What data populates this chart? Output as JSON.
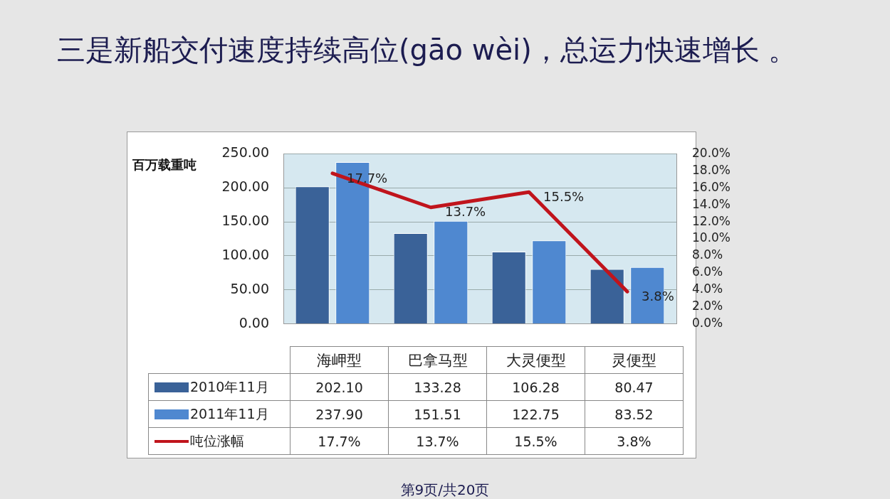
{
  "chart_data": {
    "type": "bar",
    "title": "三是新船交付速度持续高位(gāo wèi)，总运力快速增长 。",
    "ylabel": "百万载重吨",
    "categories": [
      "海岬型",
      "巴拿马型",
      "大灵便型",
      "灵便型"
    ],
    "series": [
      {
        "name": "2010年11月",
        "color": "#3a6298",
        "values": [
          202.1,
          133.28,
          106.28,
          80.47
        ],
        "value_labels": [
          "202.10",
          "133.28",
          "106.28",
          "80.47"
        ]
      },
      {
        "name": "2011年11月",
        "color": "#4f88d0",
        "values": [
          237.9,
          151.51,
          122.75,
          83.52
        ],
        "value_labels": [
          "237.90",
          "151.51",
          "122.75",
          "83.52"
        ]
      },
      {
        "name": "吨位涨幅",
        "type": "line",
        "axis": "y2",
        "color": "#c0141c",
        "values": [
          17.7,
          13.7,
          15.5,
          3.8
        ],
        "value_labels": [
          "17.7%",
          "13.7%",
          "15.5%",
          "3.8%"
        ]
      }
    ],
    "ylim": [
      0,
      250
    ],
    "yticks": [
      {
        "value": 0,
        "label": "0.00"
      },
      {
        "value": 50,
        "label": "50.00"
      },
      {
        "value": 100,
        "label": "100.00"
      },
      {
        "value": 150,
        "label": "150.00"
      },
      {
        "value": 200,
        "label": "200.00"
      },
      {
        "value": 250,
        "label": "250.00"
      }
    ],
    "y2lim": [
      0,
      20
    ],
    "y2ticks": [
      {
        "value": 0,
        "label": "0.0%"
      },
      {
        "value": 2,
        "label": "2.0%"
      },
      {
        "value": 4,
        "label": "4.0%"
      },
      {
        "value": 6,
        "label": "6.0%"
      },
      {
        "value": 8,
        "label": "8.0%"
      },
      {
        "value": 10,
        "label": "10.0%"
      },
      {
        "value": 12,
        "label": "12.0%"
      },
      {
        "value": 14,
        "label": "14.0%"
      },
      {
        "value": 16,
        "label": "16.0%"
      },
      {
        "value": 18,
        "label": "18.0%"
      },
      {
        "value": 20,
        "label": "20.0%"
      }
    ],
    "grid": "y",
    "legend": "bottom",
    "annotations": [
      "第9页/共20页"
    ]
  }
}
